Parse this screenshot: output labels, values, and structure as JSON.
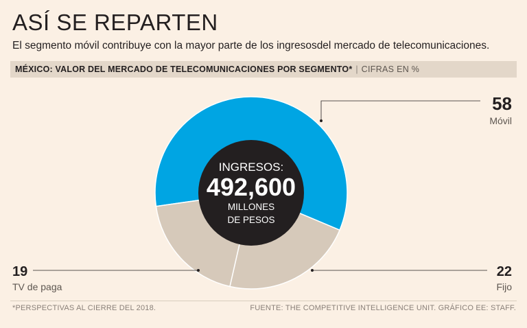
{
  "header": {
    "title": "ASÍ SE REPARTEN",
    "subtitle": "El segmento móvil contribuye con la mayor parte de los ingresosdel mercado de telecomunicaciones.",
    "bar_label": "MÉXICO: VALOR DEL MERCADO DE TELECOMUNICACIONES POR SEGMENTO*",
    "bar_separator": "|",
    "bar_unit": "CIFRAS EN %"
  },
  "center": {
    "line1": "INGRESOS:",
    "value": "492,600",
    "line3": "MILLONES",
    "line4": "DE PESOS"
  },
  "chart_data": {
    "type": "pie",
    "variant": "donut",
    "title": "MÉXICO: VALOR DEL MERCADO DE TELECOMUNICACIONES POR SEGMENTO*",
    "unit": "%",
    "slices": [
      {
        "name": "Móvil",
        "value": 58,
        "label": "58",
        "color": "#00a5e3"
      },
      {
        "name": "Fijo",
        "value": 22,
        "label": "22",
        "color": "#d6c9ba"
      },
      {
        "name": "TV de paga",
        "value": 19,
        "label": "19",
        "color": "#d6c9ba"
      }
    ],
    "center_color": "#231f20",
    "separator_color": "#ffffff"
  },
  "footer": {
    "note": "*PERSPECTIVAS AL CIERRE DEL 2018.",
    "source": "FUENTE: THE COMPETITIVE INTELLIGENCE UNIT. GRÁFICO EE: STAFF."
  }
}
